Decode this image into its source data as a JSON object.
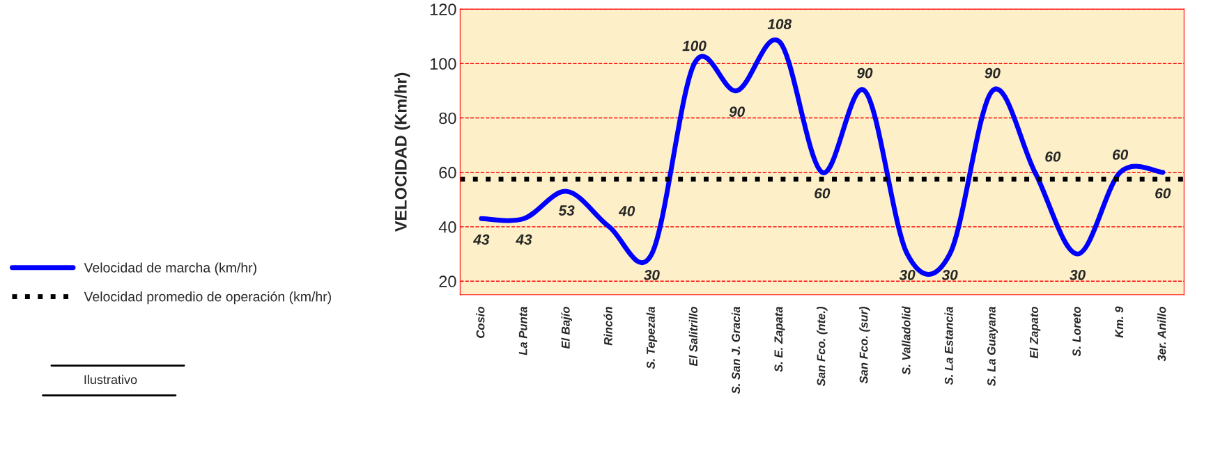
{
  "chart_data": {
    "type": "line",
    "ylabel": "VELOCIDAD (Km/hr)",
    "categories": [
      "Cosio",
      "La Punta",
      "El Bajío",
      "Rincón",
      "S. Tepezala",
      "El Salitrillo",
      "S. San J. Gracia",
      "S. E. Zapata",
      "San Fco. (nte.)",
      "San Fco. (sur)",
      "S. Valladolid",
      "S. La Estancia",
      "S. La Guayana",
      "El Zapato",
      "S. Loreto",
      "Km. 9",
      "3er. Anillo"
    ],
    "series": [
      {
        "name": "Velocidad de marcha (km/hr)",
        "color": "#0000ff",
        "values": [
          43,
          43,
          53,
          40,
          30,
          100,
          90,
          108,
          60,
          90,
          30,
          30,
          90,
          60,
          30,
          60,
          60
        ]
      }
    ],
    "ref_lines": [
      {
        "axis": "y",
        "value": 57.5,
        "label": "Velocidad promedio de operación (km/hr)",
        "color": "#000000",
        "line_style": "dotted"
      }
    ],
    "ylim": [
      15,
      120
    ],
    "yticks": [
      20,
      40,
      60,
      80,
      100,
      120
    ],
    "grid": "y",
    "legend": "left",
    "data_labels": true,
    "line_style": "solid",
    "marker": "none",
    "annotations": [
      "Ilustrativo"
    ]
  }
}
